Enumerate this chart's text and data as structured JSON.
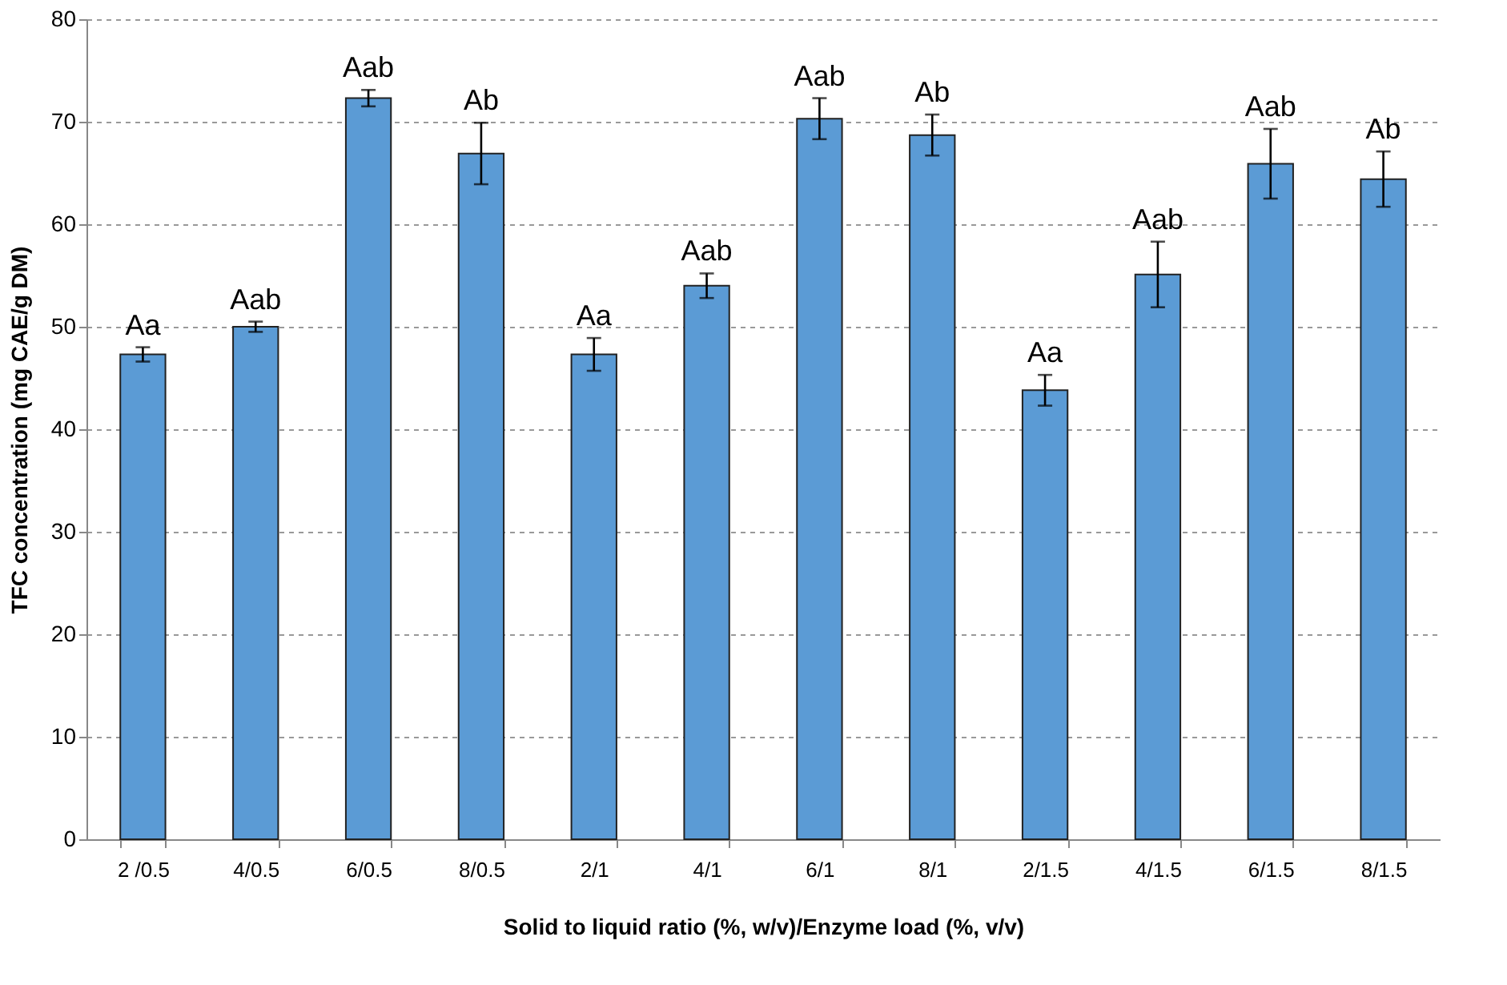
{
  "chart_data": {
    "type": "bar",
    "xlabel": "Solid to liquid ratio (%, w/v)/Enzyme load (%, v/v)",
    "ylabel": "TFC concentration (mg CAE/g DM)",
    "categories": [
      "2 /0.5",
      "4/0.5",
      "6/0.5",
      "8/0.5",
      "2/1",
      "4/1",
      "6/1",
      "8/1",
      "2/1.5",
      "4/1.5",
      "6/1.5",
      "8/1.5"
    ],
    "values": [
      47.3,
      50.0,
      72.3,
      66.9,
      47.3,
      54.0,
      70.3,
      68.7,
      43.8,
      55.1,
      65.9,
      64.4
    ],
    "errors": [
      0.7,
      0.5,
      0.8,
      3.0,
      1.6,
      1.2,
      2.0,
      2.0,
      1.5,
      3.2,
      3.4,
      2.7
    ],
    "color": "#5b9bd5",
    "ylim": [
      0,
      80
    ],
    "yticks": [
      0,
      10,
      20,
      30,
      40,
      50,
      60,
      70,
      80
    ],
    "grid": "y",
    "annotations": [
      {
        "text": "Aa",
        "x": "2 /0.5",
        "y": 48.0
      },
      {
        "text": "Aab",
        "x": "4/0.5",
        "y": 50.5
      },
      {
        "text": "Aab",
        "x": "6/0.5",
        "y": 73.1
      },
      {
        "text": "Ab",
        "x": "8/0.5",
        "y": 69.9
      },
      {
        "text": "Aa",
        "x": "2/1",
        "y": 48.9
      },
      {
        "text": "Aab",
        "x": "4/1",
        "y": 55.2
      },
      {
        "text": "Aab",
        "x": "6/1",
        "y": 72.3
      },
      {
        "text": "Ab",
        "x": "8/1",
        "y": 70.7
      },
      {
        "text": "Aa",
        "x": "2/1.5",
        "y": 45.3
      },
      {
        "text": "Aab",
        "x": "4/1.5",
        "y": 58.3
      },
      {
        "text": "Aab",
        "x": "6/1.5",
        "y": 69.3
      },
      {
        "text": "Ab",
        "x": "8/1.5",
        "y": 67.1
      }
    ]
  }
}
